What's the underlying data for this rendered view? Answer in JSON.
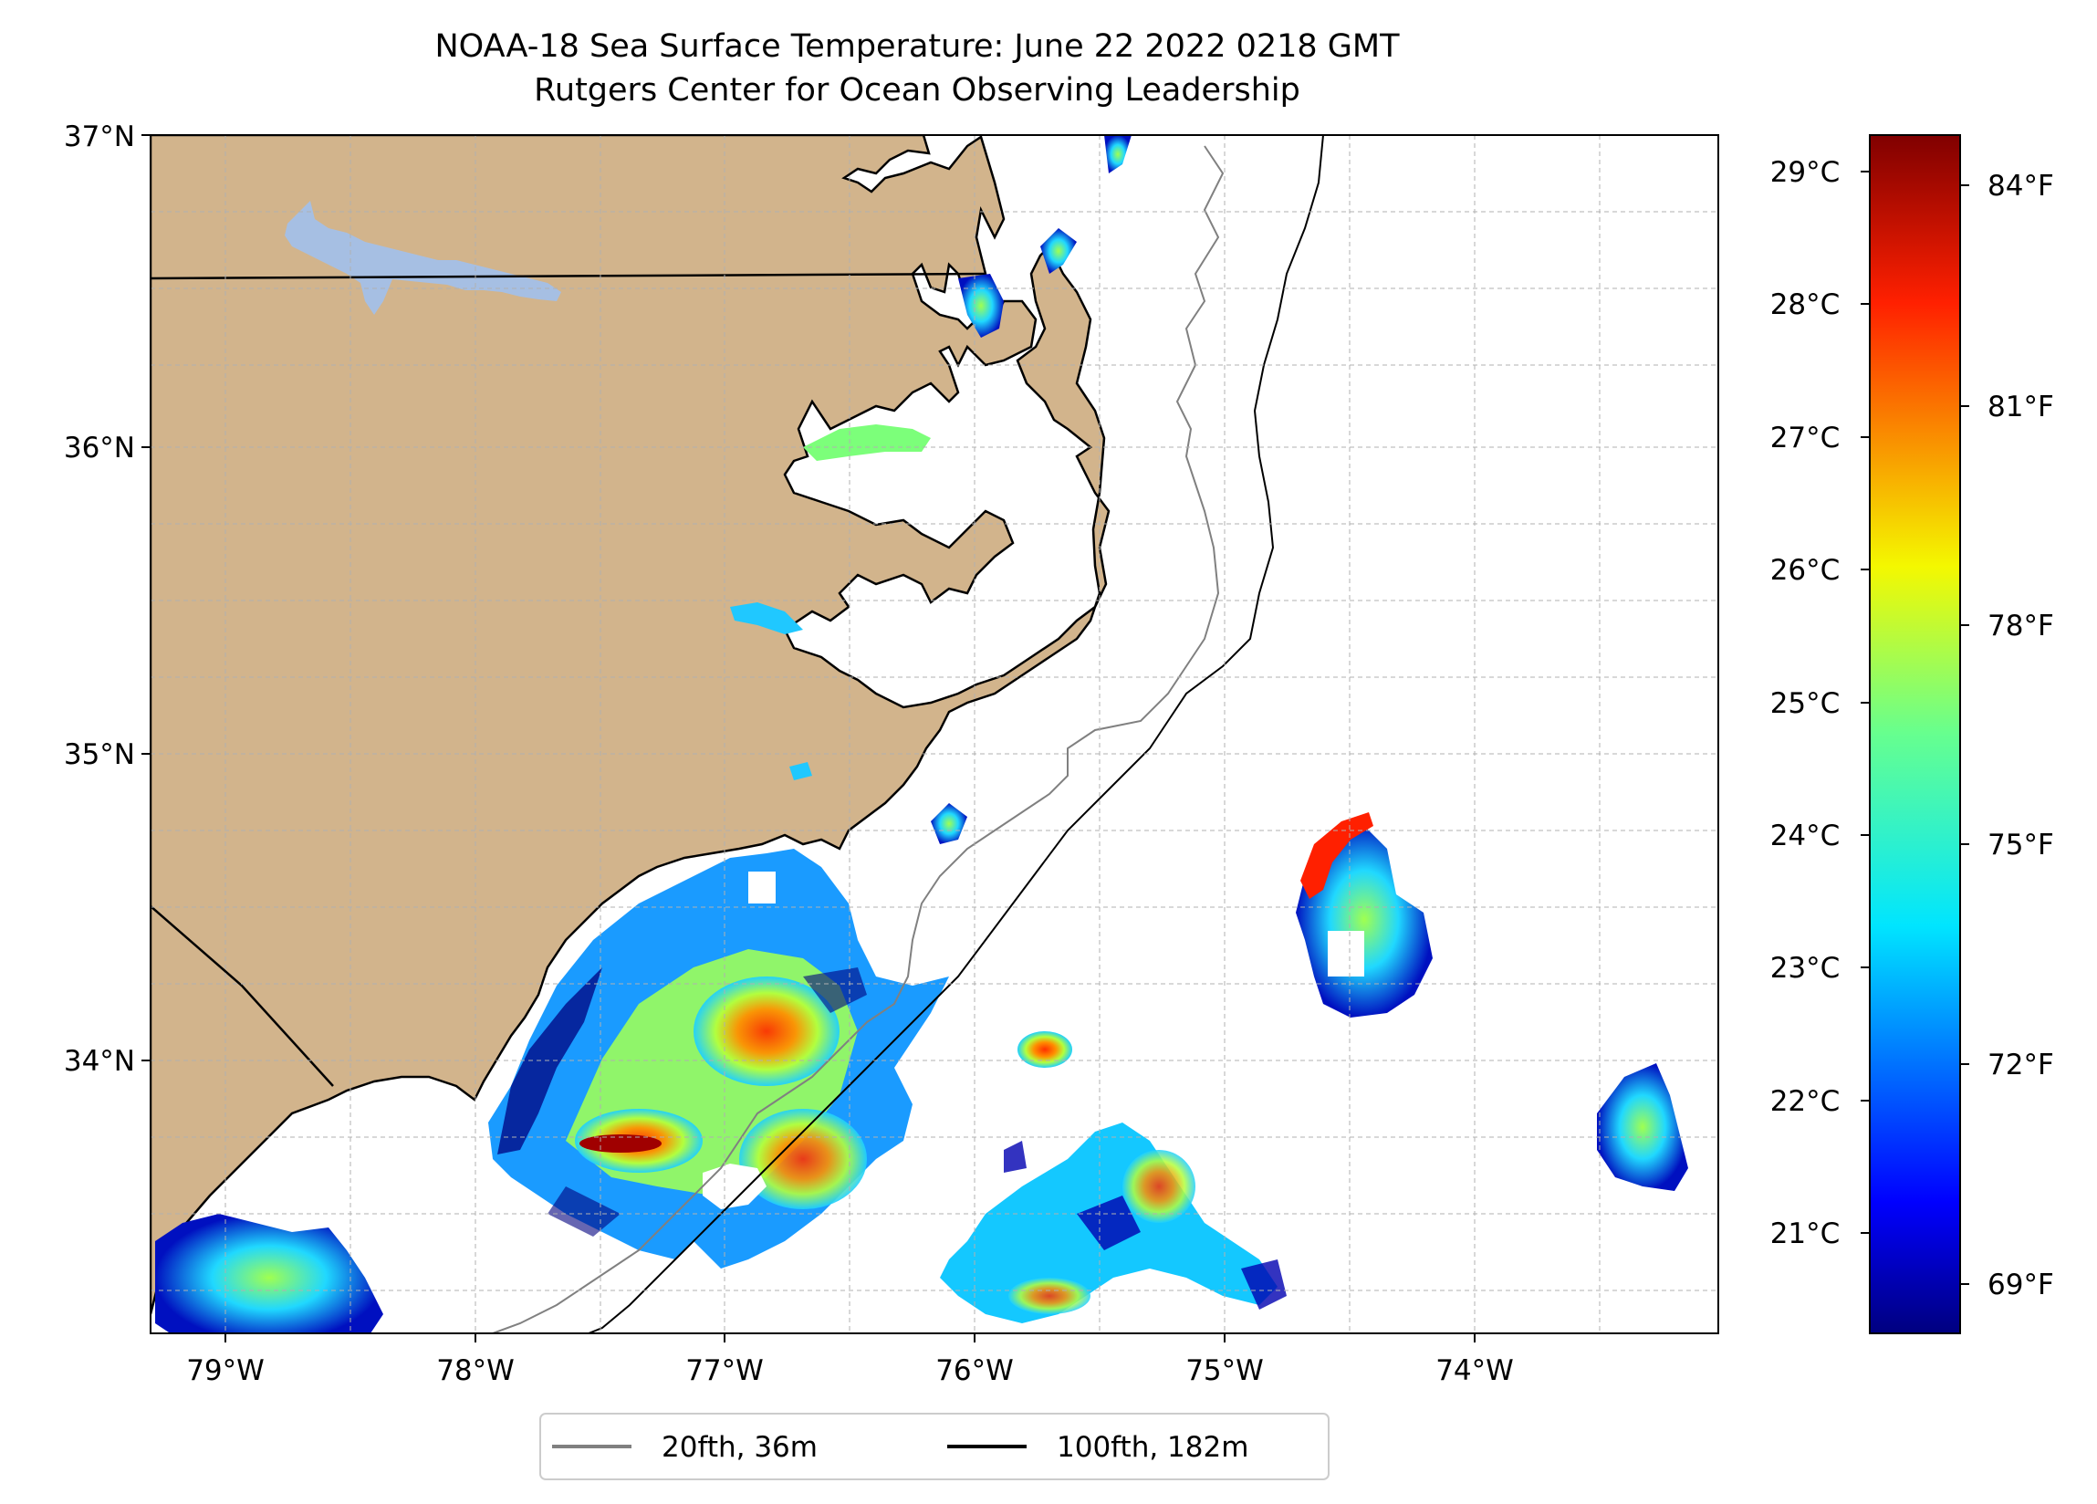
{
  "title": {
    "line1": "NOAA-18 Sea Surface Temperature: June 22 2022 0218 GMT",
    "line2": "Rutgers Center for Ocean Observing Leadership"
  },
  "map": {
    "lat_labels": [
      "37°N",
      "36°N",
      "35°N",
      "34°N"
    ],
    "lon_labels": [
      "79°W",
      "78°W",
      "77°W",
      "76°W",
      "75°W",
      "74°W"
    ],
    "land_color": "#d2b48c",
    "lake_color": "#a6bfe3"
  },
  "legend": {
    "items": [
      {
        "label": "20fth, 36m",
        "color": "#808080"
      },
      {
        "label": "100fth, 182m",
        "color": "#000000"
      }
    ]
  },
  "colorbar": {
    "celsius_labels": [
      "29°C",
      "28°C",
      "27°C",
      "26°C",
      "25°C",
      "24°C",
      "23°C",
      "22°C",
      "21°C"
    ],
    "fahrenheit_labels": [
      "84°F",
      "81°F",
      "78°F",
      "75°F",
      "72°F",
      "69°F"
    ],
    "colormap": "jet"
  }
}
